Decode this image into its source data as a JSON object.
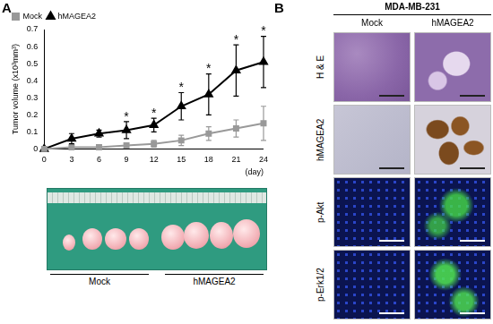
{
  "chart_data": {
    "type": "line",
    "x_label": "(day)",
    "y_label": "Tumor volume (x10³mm³)",
    "x": [
      0,
      3,
      6,
      9,
      12,
      15,
      18,
      21,
      24
    ],
    "xlim": [
      0,
      24
    ],
    "xticks": [
      0,
      3,
      6,
      9,
      12,
      15,
      18,
      21,
      24
    ],
    "ylim": [
      0,
      0.7
    ],
    "yticks": [
      0,
      0.1,
      0.2,
      0.3,
      0.4,
      0.5,
      0.6,
      0.7
    ],
    "grid": false,
    "legend": "upper left",
    "series": [
      {
        "name": "Mock",
        "color": "#999999",
        "marker": "square",
        "values": [
          0,
          0.01,
          0.01,
          0.02,
          0.03,
          0.05,
          0.09,
          0.12,
          0.15
        ],
        "errors": [
          0,
          0.01,
          0.01,
          0.01,
          0.02,
          0.03,
          0.04,
          0.05,
          0.1
        ]
      },
      {
        "name": "hMAGEA2",
        "color": "#000000",
        "marker": "triangle",
        "values": [
          0,
          0.06,
          0.09,
          0.11,
          0.14,
          0.25,
          0.32,
          0.46,
          0.51
        ],
        "errors": [
          0,
          0.03,
          0.02,
          0.05,
          0.04,
          0.08,
          0.12,
          0.15,
          0.15
        ]
      }
    ],
    "annotations": [
      {
        "x": 9,
        "text": "*"
      },
      {
        "x": 12,
        "text": "*"
      },
      {
        "x": 15,
        "text": "*"
      },
      {
        "x": 18,
        "text": "*"
      },
      {
        "x": 21,
        "text": "*"
      },
      {
        "x": 24,
        "text": "*"
      }
    ]
  },
  "panel_labels": [
    "A",
    "B"
  ],
  "photo": {
    "groups": [
      "Mock",
      "hMAGEA2"
    ]
  },
  "histology": {
    "cell_line": "MDA-MB-231",
    "columns": [
      "Mock",
      "hMAGEA2"
    ],
    "rows": [
      "H & E",
      "hMAGEA2",
      "p-Akt",
      "p-Erk1/2"
    ]
  }
}
